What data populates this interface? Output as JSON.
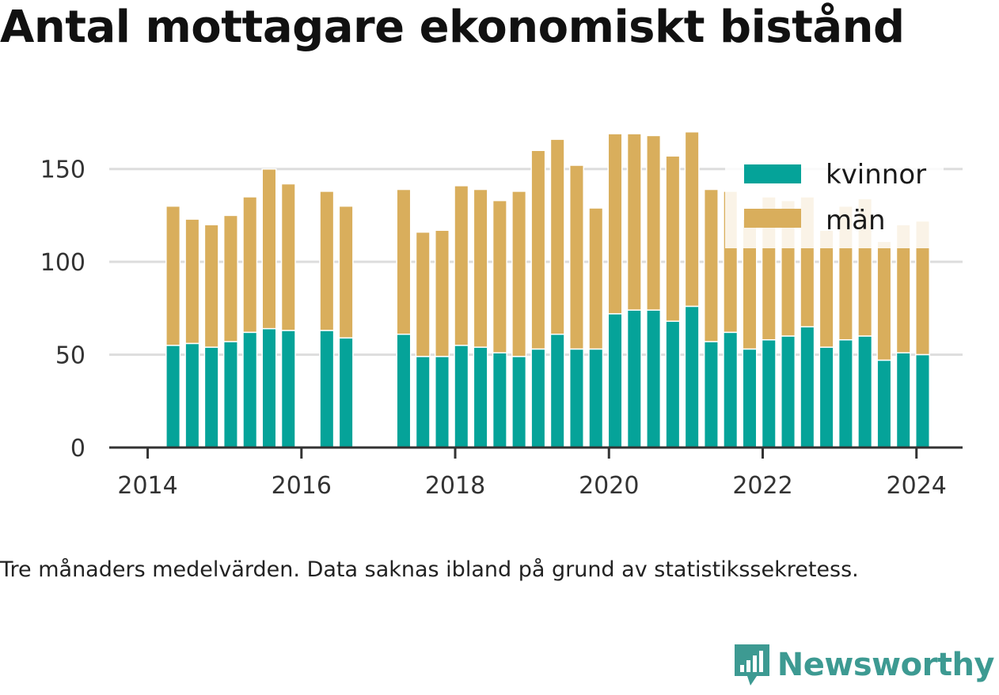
{
  "title": "Antal mottagare ekonomiskt bistånd",
  "caption": "Tre månaders medelvärden. Data saknas ibland på grund av statistikssekretess.",
  "brand": {
    "name": "Newsworthy",
    "icon": "newsworthy-chart-logo-icon"
  },
  "colors": {
    "kvinnor": "#05a399",
    "man": "#d9ae5c",
    "grid": "#dddddd",
    "axis": "#333333",
    "brand": "#3d9a92"
  },
  "chart_data": {
    "type": "bar",
    "stacked": true,
    "title": "Antal mottagare ekonomiskt bistånd",
    "xlabel": "",
    "ylabel": "",
    "ylim": [
      0,
      175
    ],
    "xlim": [
      2013.5,
      2024.6
    ],
    "yticks": [
      0,
      50,
      100,
      150
    ],
    "xticks": [
      2014,
      2016,
      2018,
      2020,
      2022,
      2024
    ],
    "grid": true,
    "legend_position": "top-right",
    "x": [
      2014.33,
      2014.58,
      2014.83,
      2015.08,
      2015.33,
      2015.58,
      2015.83,
      2016.33,
      2016.58,
      2017.33,
      2017.58,
      2017.83,
      2018.08,
      2018.33,
      2018.58,
      2018.83,
      2019.08,
      2019.33,
      2019.58,
      2019.83,
      2020.08,
      2020.33,
      2020.58,
      2020.83,
      2021.08,
      2021.33,
      2021.58,
      2021.83,
      2022.08,
      2022.33,
      2022.58,
      2022.83,
      2023.08,
      2023.33,
      2023.58,
      2023.83,
      2024.08
    ],
    "series": [
      {
        "name": "kvinnor",
        "values": [
          55,
          56,
          54,
          57,
          62,
          64,
          63,
          63,
          59,
          61,
          49,
          49,
          55,
          54,
          51,
          49,
          53,
          61,
          53,
          53,
          72,
          74,
          74,
          68,
          76,
          57,
          62,
          53,
          58,
          60,
          65,
          54,
          58,
          60,
          47,
          51,
          50
        ]
      },
      {
        "name": "män",
        "values": [
          75,
          67,
          66,
          68,
          73,
          86,
          79,
          75,
          71,
          78,
          67,
          68,
          86,
          85,
          82,
          89,
          107,
          105,
          99,
          76,
          97,
          95,
          94,
          89,
          94,
          82,
          76,
          70,
          77,
          73,
          70,
          63,
          72,
          74,
          64,
          69,
          72
        ]
      }
    ]
  }
}
